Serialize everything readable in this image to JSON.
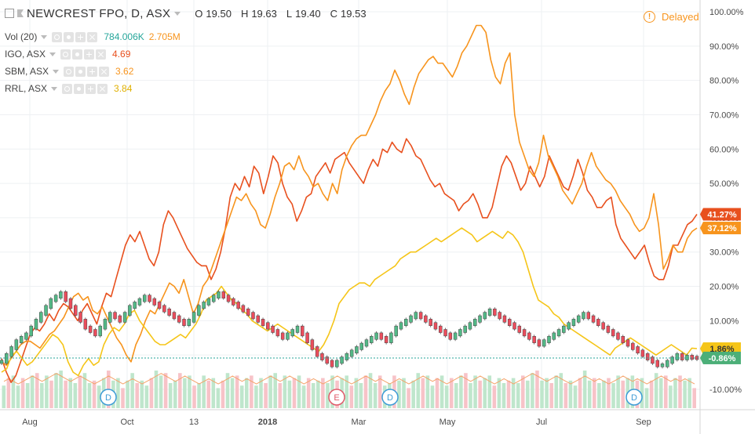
{
  "header": {
    "symbol": "NEWCREST FPO, D, ASX",
    "open_label": "O",
    "open": "19.50",
    "high_label": "H",
    "high": "19.63",
    "low_label": "L",
    "low": "19.40",
    "close_label": "C",
    "close": "19.53",
    "delayed": "Delayed"
  },
  "studies": [
    {
      "label": "Vol (20)",
      "value": "784.006K",
      "value2": "2.705M",
      "color": "#26a69a",
      "color2": "#f7941d"
    },
    {
      "label": "IGO, ASX",
      "value": "4.69",
      "color": "#e8501e"
    },
    {
      "label": "SBM, ASX",
      "value": "3.62",
      "color": "#f7941d"
    },
    {
      "label": "RRL, ASX",
      "value": "3.84",
      "color": "#f5c518"
    }
  ],
  "colors": {
    "igo": "#e8501e",
    "sbm": "#f7941d",
    "rrl": "#f5c518",
    "up_candle": "#53b987",
    "down_candle": "#eb4d5c",
    "vol_up": "#bfe6cc",
    "vol_down": "#f7c3c8",
    "vol_ma": "#f5a36a",
    "grid": "#eef0f3",
    "axis_text": "#4a4a4a"
  },
  "chart_data": {
    "type": "line",
    "title": "NEWCREST FPO, D, ASX",
    "ylabel": "",
    "ylim": [
      -15,
      100
    ],
    "y_ticks": [
      "100.00%",
      "90.00%",
      "80.00%",
      "70.00%",
      "60.00%",
      "50.00%",
      "40.00%",
      "30.00%",
      "20.00%",
      "10.00%",
      "-10.00%"
    ],
    "x_ticks": [
      "Aug",
      "Oct",
      "13",
      "2018",
      "Mar",
      "May",
      "Jul",
      "Sep"
    ],
    "x_ticks_bold": [
      "2018"
    ],
    "grid": true,
    "series": [
      {
        "name": "IGO, ASX",
        "color": "#e8501e",
        "last_label": "41.27%",
        "values": [
          -1,
          -5,
          -8,
          -6,
          -2,
          2,
          6,
          8,
          7,
          9,
          12,
          10,
          13,
          15,
          14,
          12,
          10,
          13,
          15,
          12,
          9,
          14,
          18,
          17,
          22,
          27,
          32,
          35,
          33,
          36,
          32,
          28,
          26,
          30,
          38,
          42,
          40,
          37,
          34,
          31,
          29,
          27,
          26,
          26,
          22,
          25,
          30,
          37,
          46,
          50,
          48,
          52,
          49,
          55,
          53,
          47,
          52,
          58,
          56,
          50,
          46,
          44,
          39,
          42,
          46,
          47,
          52,
          54,
          56,
          53,
          57,
          58,
          59,
          56,
          54,
          52,
          50,
          54,
          57,
          55,
          60,
          59,
          62,
          60,
          59,
          63,
          61,
          58,
          57,
          54,
          51,
          49,
          50,
          47,
          46,
          45,
          42,
          44,
          45,
          47,
          44,
          40,
          40,
          43,
          49,
          55,
          58,
          56,
          52,
          48,
          50,
          55,
          52,
          49,
          52,
          58,
          55,
          52,
          49,
          48,
          52,
          57,
          53,
          48,
          46,
          43,
          43,
          45,
          46,
          38,
          34,
          32,
          30,
          28,
          30,
          32,
          27,
          23,
          22,
          22,
          26,
          32,
          32,
          35,
          38,
          39,
          41
        ]
      },
      {
        "name": "SBM, ASX",
        "color": "#f7941d",
        "last_label": "37.12%",
        "values": [
          -2,
          -3,
          -1,
          1,
          3,
          4,
          4,
          3,
          2,
          4,
          6,
          7,
          9,
          11,
          14,
          17,
          18,
          16,
          17,
          13,
          12,
          14,
          11,
          8,
          5,
          3,
          0,
          -2,
          3,
          6,
          10,
          13,
          12,
          15,
          18,
          21,
          20,
          18,
          22,
          17,
          12,
          15,
          20,
          22,
          26,
          30,
          34,
          38,
          42,
          46,
          45,
          47,
          44,
          42,
          38,
          37,
          41,
          46,
          50,
          55,
          56,
          54,
          58,
          54,
          52,
          49,
          50,
          47,
          45,
          50,
          47,
          54,
          58,
          61,
          63,
          64,
          64,
          67,
          70,
          74,
          77,
          79,
          83,
          80,
          76,
          73,
          78,
          82,
          84,
          86,
          87,
          85,
          85,
          83,
          81,
          84,
          88,
          90,
          93,
          96,
          96,
          94,
          86,
          81,
          79,
          85,
          88,
          70,
          62,
          58,
          54,
          52,
          56,
          64,
          58,
          55,
          52,
          48,
          46,
          44,
          47,
          50,
          55,
          59,
          55,
          53,
          51,
          50,
          48,
          45,
          43,
          41,
          38,
          36,
          37,
          40,
          47,
          38,
          25,
          28,
          32,
          30,
          30,
          34,
          36,
          37
        ]
      },
      {
        "name": "RRL, ASX",
        "color": "#f5c518",
        "last_label": "1.86%",
        "values": [
          -5,
          -4,
          0,
          1,
          -1,
          -3,
          -2,
          0,
          2,
          4,
          6,
          5,
          3,
          -2,
          -5,
          -6,
          -3,
          -1,
          -3,
          -2,
          3,
          6,
          8,
          7,
          9,
          12,
          13,
          10,
          8,
          6,
          4,
          3,
          3,
          4,
          5,
          6,
          5,
          7,
          9,
          12,
          16,
          17,
          18,
          20,
          18,
          16,
          15,
          13,
          12,
          10,
          9,
          8,
          7,
          8,
          9,
          8,
          7,
          6,
          5,
          4,
          3,
          2,
          1,
          3,
          6,
          10,
          15,
          17,
          19,
          20,
          21,
          21,
          20,
          22,
          23,
          24,
          25,
          26,
          28,
          29,
          30,
          30,
          31,
          32,
          33,
          34,
          33,
          34,
          35,
          36,
          37,
          36,
          35,
          33,
          34,
          35,
          36,
          35,
          34,
          36,
          35,
          33,
          30,
          25,
          20,
          16,
          15,
          14,
          12,
          11,
          9,
          8,
          7,
          6,
          5,
          4,
          3,
          2,
          1,
          0,
          2,
          3,
          4,
          5,
          4,
          3,
          2,
          1,
          0,
          1,
          2,
          3,
          2,
          1,
          0,
          2,
          1.86
        ]
      },
      {
        "name": "NEWCREST FPO",
        "color": "#53b987",
        "last_label": "-0.86%",
        "values": [
          -2,
          0,
          2,
          4,
          5,
          6,
          8,
          10,
          12,
          14,
          16,
          17,
          18,
          16,
          14,
          12,
          10,
          8,
          7,
          6,
          8,
          10,
          12,
          11,
          10,
          12,
          14,
          15,
          16,
          17,
          16,
          15,
          14,
          13,
          12,
          11,
          10,
          9,
          10,
          12,
          14,
          15,
          16,
          17,
          18,
          17,
          16,
          15,
          14,
          13,
          12,
          11,
          10,
          9,
          8,
          7,
          6,
          5,
          6,
          7,
          8,
          6,
          4,
          2,
          0,
          -1,
          -2,
          -3,
          -2,
          -1,
          0,
          1,
          2,
          3,
          4,
          5,
          6,
          5,
          4,
          6,
          8,
          9,
          10,
          11,
          12,
          11,
          10,
          9,
          8,
          7,
          6,
          5,
          6,
          7,
          8,
          9,
          10,
          11,
          12,
          13,
          12,
          11,
          10,
          9,
          8,
          7,
          6,
          5,
          4,
          3,
          4,
          5,
          6,
          7,
          8,
          9,
          10,
          11,
          12,
          11,
          10,
          9,
          8,
          7,
          6,
          5,
          4,
          3,
          2,
          1,
          0,
          -1,
          -2,
          -3,
          -3,
          -2,
          -1,
          0,
          -1,
          -0.5,
          -0.8,
          -0.86
        ]
      }
    ],
    "volume_ma": [
      9,
      10,
      9,
      8,
      9,
      10,
      11,
      10,
      9,
      10,
      11,
      12,
      11,
      10,
      9,
      10,
      11,
      10,
      9,
      8,
      9,
      10,
      11,
      10,
      9,
      8,
      9,
      10,
      9,
      8,
      9,
      10,
      11,
      12,
      11,
      10,
      9,
      10,
      11,
      10,
      9,
      8,
      9,
      10,
      9,
      8,
      9,
      10,
      11,
      10,
      9,
      10,
      9,
      8,
      9,
      10,
      11,
      10,
      9,
      10,
      11,
      10,
      9,
      8,
      9,
      10,
      9,
      8,
      9,
      10,
      11,
      10,
      9,
      8,
      9,
      10,
      11,
      10,
      9,
      10,
      9,
      8,
      9,
      10,
      9,
      8,
      9,
      10,
      11,
      10,
      9,
      10,
      9,
      8,
      9,
      10,
      11,
      10,
      9,
      10,
      11,
      10,
      9,
      8,
      9,
      10,
      9,
      8,
      9,
      10,
      11,
      12,
      11,
      10,
      9,
      10,
      11,
      10,
      9,
      8,
      9,
      10,
      11,
      10,
      9,
      10,
      9,
      8,
      9,
      10,
      11,
      10,
      9,
      10,
      9,
      8,
      9,
      10,
      11,
      10,
      9,
      10,
      9,
      10,
      9,
      8
    ]
  },
  "event_markers": [
    {
      "letter": "D",
      "color": "#3e9cd6",
      "tooltip": "dividend"
    },
    {
      "letter": "E",
      "color": "#e05a6a",
      "tooltip": "earnings"
    },
    {
      "letter": "D",
      "color": "#3e9cd6",
      "tooltip": "dividend"
    },
    {
      "letter": "D",
      "color": "#3e9cd6",
      "tooltip": "dividend"
    }
  ]
}
